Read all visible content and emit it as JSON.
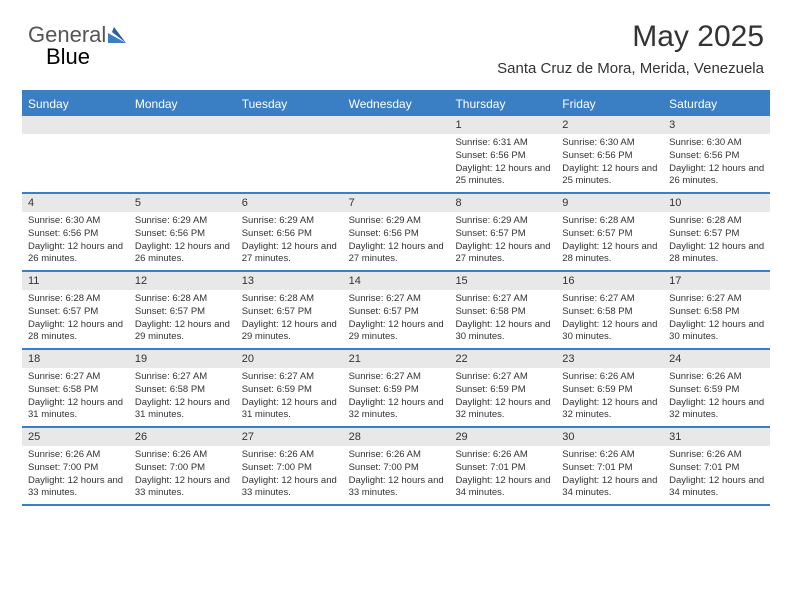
{
  "logo": {
    "text_a": "General",
    "text_b": "Blue"
  },
  "title": "May 2025",
  "subtitle": "Santa Cruz de Mora, Merida, Venezuela",
  "colors": {
    "accent": "#3a7fc4",
    "header_bg": "#3a7fc4",
    "header_text": "#ffffff",
    "daynum_bg": "#e8e8e8",
    "body_text": "#333333",
    "page_bg": "#ffffff"
  },
  "header_days": [
    "Sunday",
    "Monday",
    "Tuesday",
    "Wednesday",
    "Thursday",
    "Friday",
    "Saturday"
  ],
  "weeks": [
    [
      {
        "n": "",
        "lines": []
      },
      {
        "n": "",
        "lines": []
      },
      {
        "n": "",
        "lines": []
      },
      {
        "n": "",
        "lines": []
      },
      {
        "n": "1",
        "lines": [
          "Sunrise: 6:31 AM",
          "Sunset: 6:56 PM",
          "Daylight: 12 hours and 25 minutes."
        ]
      },
      {
        "n": "2",
        "lines": [
          "Sunrise: 6:30 AM",
          "Sunset: 6:56 PM",
          "Daylight: 12 hours and 25 minutes."
        ]
      },
      {
        "n": "3",
        "lines": [
          "Sunrise: 6:30 AM",
          "Sunset: 6:56 PM",
          "Daylight: 12 hours and 26 minutes."
        ]
      }
    ],
    [
      {
        "n": "4",
        "lines": [
          "Sunrise: 6:30 AM",
          "Sunset: 6:56 PM",
          "Daylight: 12 hours and 26 minutes."
        ]
      },
      {
        "n": "5",
        "lines": [
          "Sunrise: 6:29 AM",
          "Sunset: 6:56 PM",
          "Daylight: 12 hours and 26 minutes."
        ]
      },
      {
        "n": "6",
        "lines": [
          "Sunrise: 6:29 AM",
          "Sunset: 6:56 PM",
          "Daylight: 12 hours and 27 minutes."
        ]
      },
      {
        "n": "7",
        "lines": [
          "Sunrise: 6:29 AM",
          "Sunset: 6:56 PM",
          "Daylight: 12 hours and 27 minutes."
        ]
      },
      {
        "n": "8",
        "lines": [
          "Sunrise: 6:29 AM",
          "Sunset: 6:57 PM",
          "Daylight: 12 hours and 27 minutes."
        ]
      },
      {
        "n": "9",
        "lines": [
          "Sunrise: 6:28 AM",
          "Sunset: 6:57 PM",
          "Daylight: 12 hours and 28 minutes."
        ]
      },
      {
        "n": "10",
        "lines": [
          "Sunrise: 6:28 AM",
          "Sunset: 6:57 PM",
          "Daylight: 12 hours and 28 minutes."
        ]
      }
    ],
    [
      {
        "n": "11",
        "lines": [
          "Sunrise: 6:28 AM",
          "Sunset: 6:57 PM",
          "Daylight: 12 hours and 28 minutes."
        ]
      },
      {
        "n": "12",
        "lines": [
          "Sunrise: 6:28 AM",
          "Sunset: 6:57 PM",
          "Daylight: 12 hours and 29 minutes."
        ]
      },
      {
        "n": "13",
        "lines": [
          "Sunrise: 6:28 AM",
          "Sunset: 6:57 PM",
          "Daylight: 12 hours and 29 minutes."
        ]
      },
      {
        "n": "14",
        "lines": [
          "Sunrise: 6:27 AM",
          "Sunset: 6:57 PM",
          "Daylight: 12 hours and 29 minutes."
        ]
      },
      {
        "n": "15",
        "lines": [
          "Sunrise: 6:27 AM",
          "Sunset: 6:58 PM",
          "Daylight: 12 hours and 30 minutes."
        ]
      },
      {
        "n": "16",
        "lines": [
          "Sunrise: 6:27 AM",
          "Sunset: 6:58 PM",
          "Daylight: 12 hours and 30 minutes."
        ]
      },
      {
        "n": "17",
        "lines": [
          "Sunrise: 6:27 AM",
          "Sunset: 6:58 PM",
          "Daylight: 12 hours and 30 minutes."
        ]
      }
    ],
    [
      {
        "n": "18",
        "lines": [
          "Sunrise: 6:27 AM",
          "Sunset: 6:58 PM",
          "Daylight: 12 hours and 31 minutes."
        ]
      },
      {
        "n": "19",
        "lines": [
          "Sunrise: 6:27 AM",
          "Sunset: 6:58 PM",
          "Daylight: 12 hours and 31 minutes."
        ]
      },
      {
        "n": "20",
        "lines": [
          "Sunrise: 6:27 AM",
          "Sunset: 6:59 PM",
          "Daylight: 12 hours and 31 minutes."
        ]
      },
      {
        "n": "21",
        "lines": [
          "Sunrise: 6:27 AM",
          "Sunset: 6:59 PM",
          "Daylight: 12 hours and 32 minutes."
        ]
      },
      {
        "n": "22",
        "lines": [
          "Sunrise: 6:27 AM",
          "Sunset: 6:59 PM",
          "Daylight: 12 hours and 32 minutes."
        ]
      },
      {
        "n": "23",
        "lines": [
          "Sunrise: 6:26 AM",
          "Sunset: 6:59 PM",
          "Daylight: 12 hours and 32 minutes."
        ]
      },
      {
        "n": "24",
        "lines": [
          "Sunrise: 6:26 AM",
          "Sunset: 6:59 PM",
          "Daylight: 12 hours and 32 minutes."
        ]
      }
    ],
    [
      {
        "n": "25",
        "lines": [
          "Sunrise: 6:26 AM",
          "Sunset: 7:00 PM",
          "Daylight: 12 hours and 33 minutes."
        ]
      },
      {
        "n": "26",
        "lines": [
          "Sunrise: 6:26 AM",
          "Sunset: 7:00 PM",
          "Daylight: 12 hours and 33 minutes."
        ]
      },
      {
        "n": "27",
        "lines": [
          "Sunrise: 6:26 AM",
          "Sunset: 7:00 PM",
          "Daylight: 12 hours and 33 minutes."
        ]
      },
      {
        "n": "28",
        "lines": [
          "Sunrise: 6:26 AM",
          "Sunset: 7:00 PM",
          "Daylight: 12 hours and 33 minutes."
        ]
      },
      {
        "n": "29",
        "lines": [
          "Sunrise: 6:26 AM",
          "Sunset: 7:01 PM",
          "Daylight: 12 hours and 34 minutes."
        ]
      },
      {
        "n": "30",
        "lines": [
          "Sunrise: 6:26 AM",
          "Sunset: 7:01 PM",
          "Daylight: 12 hours and 34 minutes."
        ]
      },
      {
        "n": "31",
        "lines": [
          "Sunrise: 6:26 AM",
          "Sunset: 7:01 PM",
          "Daylight: 12 hours and 34 minutes."
        ]
      }
    ]
  ]
}
